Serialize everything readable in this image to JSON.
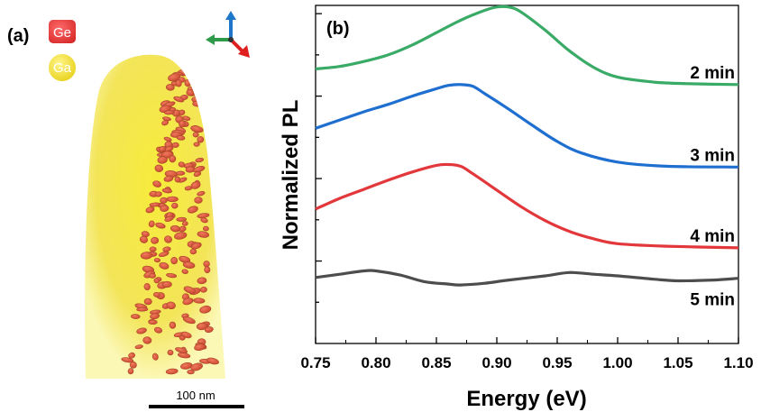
{
  "panel_a": {
    "label": "(a)",
    "legend": [
      {
        "symbol": "Ge",
        "color": "#e8383d"
      },
      {
        "symbol": "Ga",
        "color": "#f2e01e"
      }
    ],
    "scale_bar": "100 nm",
    "axis_colors": {
      "up": "#1f77c9",
      "left": "#2e9b4a",
      "diag": "#e02020"
    }
  },
  "chart_data": {
    "type": "line",
    "panel_label": "(b)",
    "xlabel": "Energy (eV)",
    "ylabel": "Normalized PL",
    "xlim": [
      0.75,
      1.1
    ],
    "xticks": [
      0.75,
      0.8,
      0.85,
      0.9,
      0.95,
      1.0,
      1.05,
      1.1
    ],
    "xtick_labels": [
      "0.75",
      "0.80",
      "0.85",
      "0.90",
      "0.95",
      "1.00",
      "1.05",
      "1.10"
    ],
    "ylim": [
      0,
      4.1
    ],
    "yticks": [
      0.5,
      1.0,
      1.5,
      2.0,
      2.5,
      3.0,
      3.5,
      4.0
    ],
    "grid": false,
    "legend": "none",
    "series": [
      {
        "name": "2 min",
        "color": "#3aaa67",
        "x": [
          0.75,
          0.77,
          0.79,
          0.81,
          0.83,
          0.85,
          0.87,
          0.89,
          0.9,
          0.91,
          0.92,
          0.94,
          0.96,
          0.98,
          1.0,
          1.03,
          1.06,
          1.1
        ],
        "y": [
          3.33,
          3.36,
          3.42,
          3.5,
          3.62,
          3.77,
          3.92,
          4.04,
          4.08,
          4.08,
          4.02,
          3.8,
          3.55,
          3.35,
          3.23,
          3.17,
          3.15,
          3.14
        ]
      },
      {
        "name": "3 min",
        "color": "#1f6fd0",
        "x": [
          0.75,
          0.77,
          0.79,
          0.81,
          0.83,
          0.85,
          0.86,
          0.87,
          0.88,
          0.89,
          0.91,
          0.93,
          0.95,
          0.97,
          1.0,
          1.04,
          1.1
        ],
        "y": [
          2.61,
          2.71,
          2.81,
          2.9,
          3.0,
          3.09,
          3.13,
          3.14,
          3.12,
          3.03,
          2.84,
          2.64,
          2.45,
          2.31,
          2.2,
          2.15,
          2.14
        ]
      },
      {
        "name": "4 min",
        "color": "#e2373b",
        "x": [
          0.75,
          0.77,
          0.79,
          0.81,
          0.83,
          0.85,
          0.86,
          0.87,
          0.88,
          0.9,
          0.92,
          0.94,
          0.96,
          0.98,
          1.0,
          1.04,
          1.1
        ],
        "y": [
          1.63,
          1.76,
          1.87,
          1.98,
          2.08,
          2.16,
          2.17,
          2.15,
          2.06,
          1.86,
          1.66,
          1.49,
          1.36,
          1.27,
          1.21,
          1.18,
          1.16
        ]
      },
      {
        "name": "5 min",
        "color": "#4d4d4d",
        "x": [
          0.75,
          0.77,
          0.79,
          0.8,
          0.82,
          0.84,
          0.86,
          0.87,
          0.89,
          0.91,
          0.94,
          0.96,
          0.98,
          1.0,
          1.03,
          1.05,
          1.08,
          1.1
        ],
        "y": [
          0.8,
          0.84,
          0.88,
          0.88,
          0.83,
          0.75,
          0.72,
          0.71,
          0.73,
          0.77,
          0.82,
          0.86,
          0.84,
          0.82,
          0.78,
          0.76,
          0.77,
          0.79
        ]
      }
    ]
  }
}
